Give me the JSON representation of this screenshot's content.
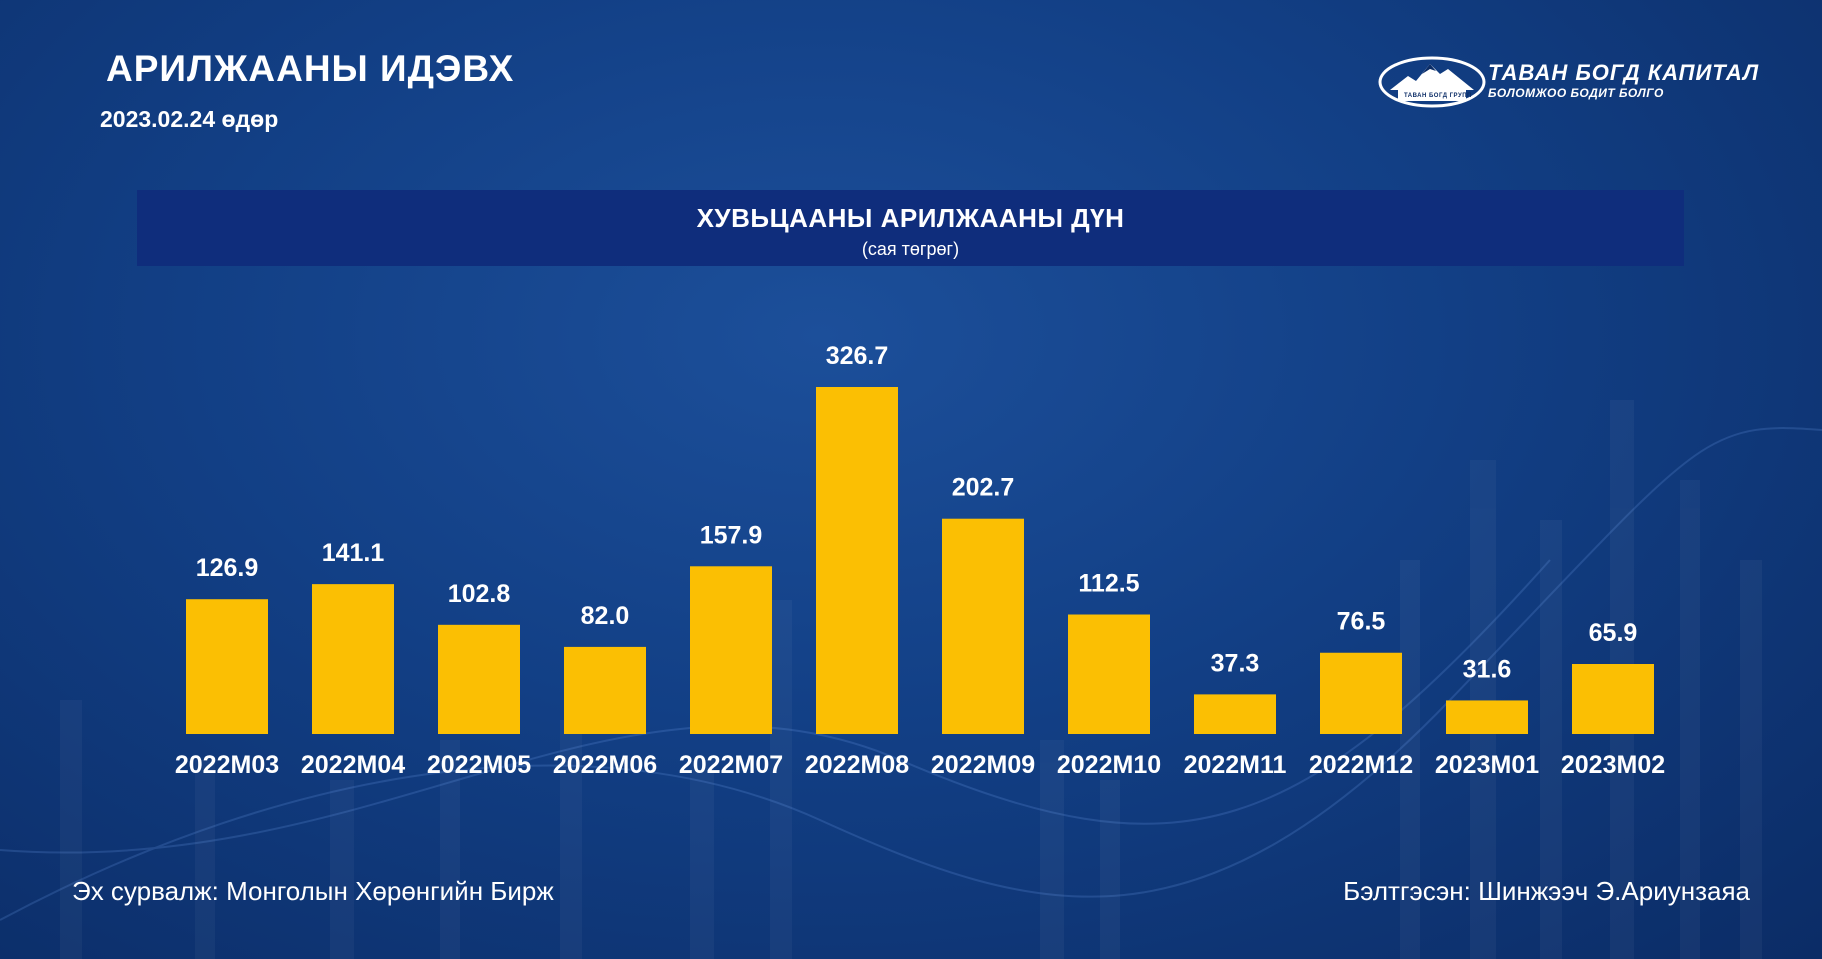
{
  "header": {
    "title": "АРИЛЖААНЫ ИДЭВХ",
    "date": "2023.02.24 өдөр"
  },
  "logo": {
    "name": "ТАВАН БОГД КАПИТАЛ",
    "slogan": "БОЛОМЖОО БОДИТ БОЛГО",
    "group": "ТАВАН БОГД ГРУПП"
  },
  "chart_data": {
    "type": "bar",
    "title": "ХУВЬЦААНЫ АРИЛЖААНЫ ДҮН",
    "subtitle": "(сая төгрөг)",
    "categories": [
      "2022M03",
      "2022M04",
      "2022M05",
      "2022M06",
      "2022M07",
      "2022M08",
      "2022M09",
      "2022M10",
      "2022M11",
      "2022M12",
      "2023M01",
      "2023M02"
    ],
    "values": [
      126.9,
      141.1,
      102.8,
      82.0,
      157.9,
      326.7,
      202.7,
      112.5,
      37.3,
      76.5,
      31.6,
      65.9
    ],
    "value_labels": [
      "126.9",
      "141.1",
      "102.8",
      "82.0",
      "157.9",
      "326.7",
      "202.7",
      "112.5",
      "37.3",
      "76.5",
      "31.6",
      "65.9"
    ],
    "ylim": [
      0,
      326.7
    ],
    "bar_color": "#fbbf03",
    "grid": false,
    "legend": "none"
  },
  "footer": {
    "source": "Эх сурвалж: Монголын Хөрөнгийн Бирж",
    "prepared_by": "Бэлтгэсэн: Шинжээч Э.Ариунзаяа"
  },
  "colors": {
    "background": "#123f85",
    "header_band": "#0f2d7c",
    "text": "#ffffff"
  }
}
